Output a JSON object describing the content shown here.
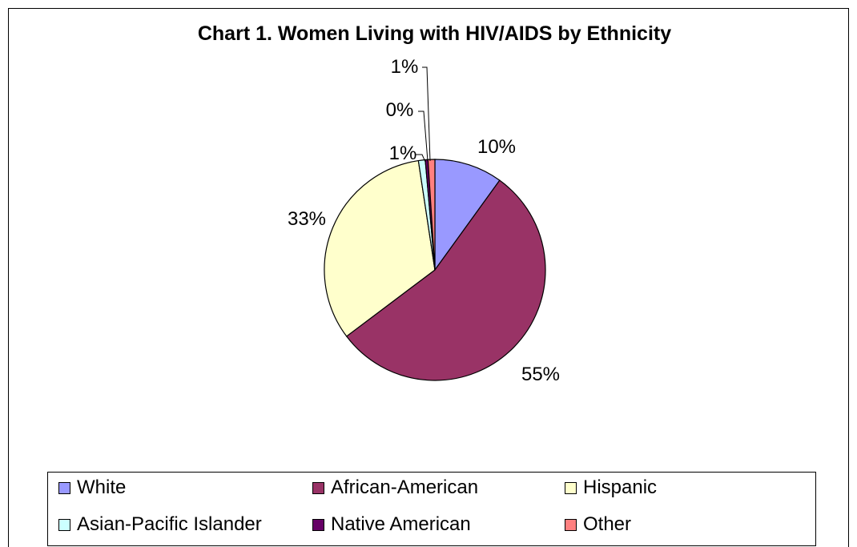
{
  "chart_data": {
    "type": "pie",
    "title": "Chart 1. Women Living with HIV/AIDS by Ethnicity",
    "categories": [
      "White",
      "African-American",
      "Hispanic",
      "Asian-Pacific Islander",
      "Native American",
      "Other"
    ],
    "values": [
      10,
      55,
      33,
      1,
      0,
      1
    ],
    "labels": [
      "10%",
      "55%",
      "33%",
      "1%",
      "0%",
      "1%"
    ],
    "colors": [
      "#9999ff",
      "#993366",
      "#ffffcc",
      "#ccffff",
      "#660066",
      "#ff8080"
    ],
    "legend": "bottom"
  }
}
